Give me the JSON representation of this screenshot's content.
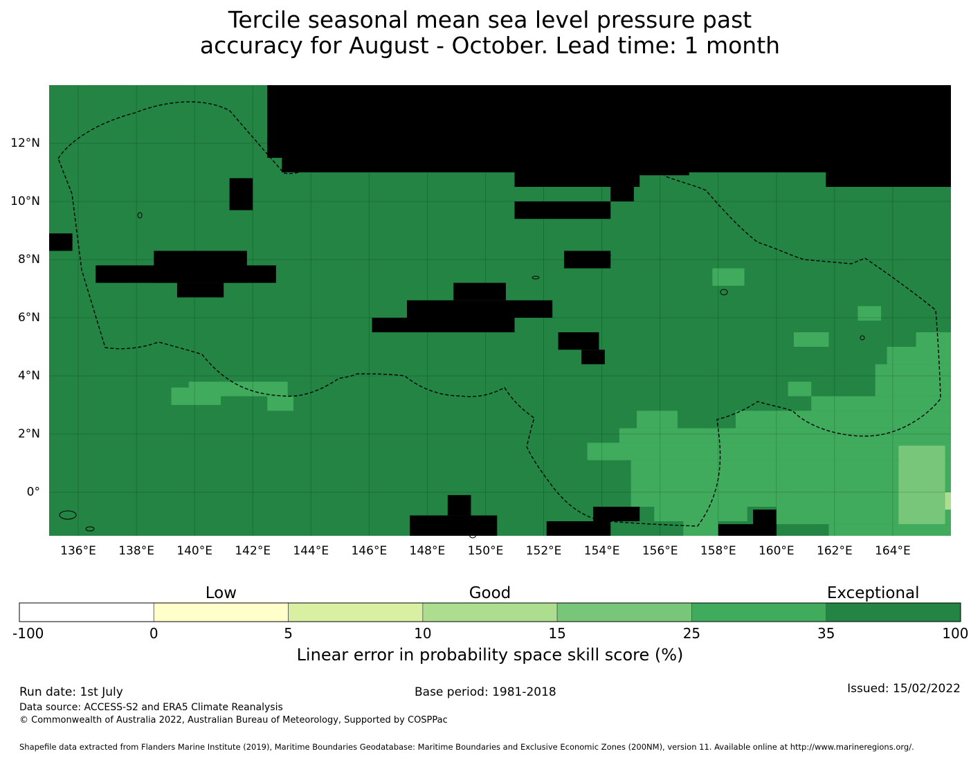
{
  "title_line1": "Tercile seasonal mean sea level pressure past",
  "title_line2": "accuracy for August - October. Lead time: 1 month",
  "map": {
    "lon_range": [
      135.0,
      166.0
    ],
    "lat_range": [
      -1.5,
      14.0
    ],
    "lon_ticks": [
      {
        "value": 136,
        "label": "136°E"
      },
      {
        "value": 138,
        "label": "138°E"
      },
      {
        "value": 140,
        "label": "140°E"
      },
      {
        "value": 142,
        "label": "142°E"
      },
      {
        "value": 144,
        "label": "144°E"
      },
      {
        "value": 146,
        "label": "146°E"
      },
      {
        "value": 148,
        "label": "148°E"
      },
      {
        "value": 150,
        "label": "150°E"
      },
      {
        "value": 152,
        "label": "152°E"
      },
      {
        "value": 154,
        "label": "154°E"
      },
      {
        "value": 156,
        "label": "156°E"
      },
      {
        "value": 158,
        "label": "158°E"
      },
      {
        "value": 160,
        "label": "160°E"
      },
      {
        "value": 162,
        "label": "162°E"
      },
      {
        "value": 164,
        "label": "164°E"
      }
    ],
    "lat_ticks": [
      {
        "value": 12,
        "label": "12°N"
      },
      {
        "value": 10,
        "label": "10°N"
      },
      {
        "value": 8,
        "label": "8°N"
      },
      {
        "value": 6,
        "label": "6°N"
      },
      {
        "value": 4,
        "label": "4°N"
      },
      {
        "value": 2,
        "label": "2°N"
      },
      {
        "value": 0,
        "label": "0°"
      }
    ],
    "background_class": 6,
    "cells": [
      {
        "lon": [
          135.0,
          135.8
        ],
        "lat": [
          8.3,
          8.9
        ],
        "c": 7
      },
      {
        "lon": [
          141.2,
          142.0
        ],
        "lat": [
          9.7,
          10.8
        ],
        "c": 7
      },
      {
        "lon": [
          138.6,
          141.8
        ],
        "lat": [
          7.2,
          8.3
        ],
        "c": 7
      },
      {
        "lon": [
          136.6,
          142.8
        ],
        "lat": [
          7.2,
          7.8
        ],
        "c": 7
      },
      {
        "lon": [
          139.4,
          141.0
        ],
        "lat": [
          6.7,
          7.2
        ],
        "c": 7
      },
      {
        "lon": [
          142.5,
          166.0
        ],
        "lat": [
          11.5,
          14.0
        ],
        "c": 7
      },
      {
        "lon": [
          143.0,
          166.0
        ],
        "lat": [
          11.0,
          12.0
        ],
        "c": 7
      },
      {
        "lon": [
          151.0,
          155.3
        ],
        "lat": [
          10.5,
          11.1
        ],
        "c": 7
      },
      {
        "lon": [
          155.3,
          157.0
        ],
        "lat": [
          10.9,
          11.1
        ],
        "c": 7
      },
      {
        "lon": [
          161.7,
          166.0
        ],
        "lat": [
          10.5,
          12.0
        ],
        "c": 7
      },
      {
        "lon": [
          154.3,
          155.1
        ],
        "lat": [
          10.0,
          10.6
        ],
        "c": 7
      },
      {
        "lon": [
          151.0,
          154.3
        ],
        "lat": [
          9.4,
          10.0
        ],
        "c": 7
      },
      {
        "lon": [
          152.7,
          154.3
        ],
        "lat": [
          7.7,
          8.3
        ],
        "c": 7
      },
      {
        "lon": [
          148.9,
          150.7
        ],
        "lat": [
          6.6,
          7.2
        ],
        "c": 7
      },
      {
        "lon": [
          147.3,
          152.3
        ],
        "lat": [
          6.0,
          6.6
        ],
        "c": 7
      },
      {
        "lon": [
          146.1,
          151.0
        ],
        "lat": [
          5.5,
          6.0
        ],
        "c": 7
      },
      {
        "lon": [
          152.5,
          153.9
        ],
        "lat": [
          4.9,
          5.5
        ],
        "c": 7
      },
      {
        "lon": [
          153.3,
          154.1
        ],
        "lat": [
          4.4,
          4.9
        ],
        "c": 7
      },
      {
        "lon": [
          148.7,
          149.5
        ],
        "lat": [
          -0.8,
          -0.1
        ],
        "c": 7
      },
      {
        "lon": [
          147.4,
          150.4
        ],
        "lat": [
          -1.5,
          -0.8
        ],
        "c": 7
      },
      {
        "lon": [
          152.1,
          154.3
        ],
        "lat": [
          -1.5,
          -1.0
        ],
        "c": 7
      },
      {
        "lon": [
          153.7,
          155.3
        ],
        "lat": [
          -1.0,
          -0.5
        ],
        "c": 7
      },
      {
        "lon": [
          159.2,
          160.0
        ],
        "lat": [
          -1.5,
          -0.6
        ],
        "c": 7
      },
      {
        "lon": [
          158.0,
          160.0
        ],
        "lat": [
          -1.5,
          -1.1
        ],
        "c": 7
      },
      {
        "lon": [
          165.6,
          166.0
        ],
        "lat": [
          11.3,
          11.4
        ],
        "c": 7
      },
      {
        "lon": [
          139.2,
          140.9
        ],
        "lat": [
          3.0,
          3.6
        ],
        "c": 5
      },
      {
        "lon": [
          140.9,
          143.2
        ],
        "lat": [
          3.3,
          3.8
        ],
        "c": 5
      },
      {
        "lon": [
          139.8,
          141.0
        ],
        "lat": [
          3.5,
          3.8
        ],
        "c": 5
      },
      {
        "lon": [
          142.5,
          143.4
        ],
        "lat": [
          2.8,
          3.3
        ],
        "c": 5
      },
      {
        "lon": [
          157.8,
          158.9
        ],
        "lat": [
          7.1,
          7.7
        ],
        "c": 5
      },
      {
        "lon": [
          162.8,
          163.6
        ],
        "lat": [
          5.9,
          6.4
        ],
        "c": 5
      },
      {
        "lon": [
          160.6,
          161.8
        ],
        "lat": [
          5.0,
          5.5
        ],
        "c": 5
      },
      {
        "lon": [
          164.8,
          166.0
        ],
        "lat": [
          5.0,
          5.5
        ],
        "c": 5
      },
      {
        "lon": [
          163.8,
          166.0
        ],
        "lat": [
          4.4,
          5.0
        ],
        "c": 5
      },
      {
        "lon": [
          163.4,
          166.0
        ],
        "lat": [
          3.3,
          4.4
        ],
        "c": 5
      },
      {
        "lon": [
          161.2,
          166.0
        ],
        "lat": [
          2.8,
          3.3
        ],
        "c": 5
      },
      {
        "lon": [
          160.4,
          161.2
        ],
        "lat": [
          3.3,
          3.8
        ],
        "c": 5
      },
      {
        "lon": [
          159.0,
          166.0
        ],
        "lat": [
          2.2,
          2.8
        ],
        "c": 5
      },
      {
        "lon": [
          155.2,
          156.6
        ],
        "lat": [
          2.2,
          2.8
        ],
        "c": 5
      },
      {
        "lon": [
          154.6,
          158.1
        ],
        "lat": [
          1.7,
          2.2
        ],
        "c": 5
      },
      {
        "lon": [
          158.6,
          159.2
        ],
        "lat": [
          2.2,
          2.8
        ],
        "c": 5
      },
      {
        "lon": [
          158.1,
          166.0
        ],
        "lat": [
          1.7,
          2.2
        ],
        "c": 5
      },
      {
        "lon": [
          153.5,
          166.0
        ],
        "lat": [
          1.1,
          1.7
        ],
        "c": 5
      },
      {
        "lon": [
          155.0,
          166.0
        ],
        "lat": [
          -0.5,
          1.1
        ],
        "c": 5
      },
      {
        "lon": [
          155.8,
          159.0
        ],
        "lat": [
          -1.0,
          -0.5
        ],
        "c": 5
      },
      {
        "lon": [
          160.0,
          166.0
        ],
        "lat": [
          -1.1,
          -0.5
        ],
        "c": 5
      },
      {
        "lon": [
          161.8,
          166.0
        ],
        "lat": [
          -1.5,
          -1.1
        ],
        "c": 5
      },
      {
        "lon": [
          156.8,
          158.0
        ],
        "lat": [
          -1.5,
          -1.0
        ],
        "c": 5
      },
      {
        "lon": [
          164.2,
          165.8
        ],
        "lat": [
          -1.1,
          1.6
        ],
        "c": 4
      },
      {
        "lon": [
          165.8,
          166.0
        ],
        "lat": [
          -0.6,
          0.0
        ],
        "c": 3
      }
    ]
  },
  "colorbar": {
    "categories": [
      {
        "label": "Low",
        "at": 1.5
      },
      {
        "label": "Good",
        "at": 3.5
      },
      {
        "label": "Exceptional",
        "at": 6.35
      }
    ],
    "bins": [
      {
        "from": "-100",
        "to": "0",
        "color": "#ffffff"
      },
      {
        "from": "0",
        "to": "5",
        "color": "#ffffcc"
      },
      {
        "from": "5",
        "to": "10",
        "color": "#d9f0a3"
      },
      {
        "from": "10",
        "to": "15",
        "color": "#addd8e"
      },
      {
        "from": "15",
        "to": "25",
        "color": "#78c679"
      },
      {
        "from": "25",
        "to": "35",
        "color": "#41ab5d"
      },
      {
        "from": "35",
        "to": "100",
        "color": "#238443"
      }
    ],
    "tick_labels": [
      "-100",
      "0",
      "5",
      "10",
      "15",
      "25",
      "35",
      "100"
    ],
    "label": "Linear error in probability space skill score (%)"
  },
  "footer": {
    "run_date": "Run date: 1st July",
    "base_period": "Base period: 1981-2018",
    "issued": "Issued: 15/02/2022",
    "data_source": "Data source: ACCESS-S2 and ERA5 Climate Reanalysis",
    "copyright": "© Commonwealth of Australia 2022, Australian Bureau of Meteorology, Supported by COSPPac",
    "shapefile": "Shapefile data extracted from Flanders Marine Institute (2019), Maritime Boundaries Geodatabase: Maritime Boundaries and Exclusive Economic Zones (200NM), version 11. Available online at http://www.marineregions.org/."
  }
}
